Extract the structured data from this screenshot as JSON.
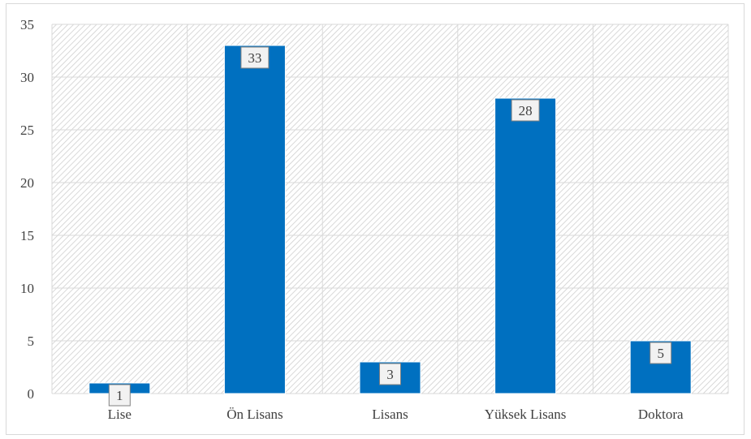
{
  "chart_data": {
    "type": "bar",
    "title": "",
    "xlabel": "",
    "ylabel": "",
    "categories": [
      "Lise",
      "Ön Lisans",
      "Lisans",
      "Yüksek Lisans",
      "Doktora"
    ],
    "values": [
      1,
      33,
      3,
      28,
      5
    ],
    "ylim": [
      0,
      35
    ],
    "yticks": [
      "0",
      "5",
      "10",
      "15",
      "20",
      "25",
      "30",
      "35"
    ],
    "data_labels": [
      "1",
      "33",
      "3",
      "28",
      "5"
    ],
    "bar_color": "#0070c0",
    "grid": true,
    "legend": "none",
    "plot_background": "diagonal-hatch"
  }
}
